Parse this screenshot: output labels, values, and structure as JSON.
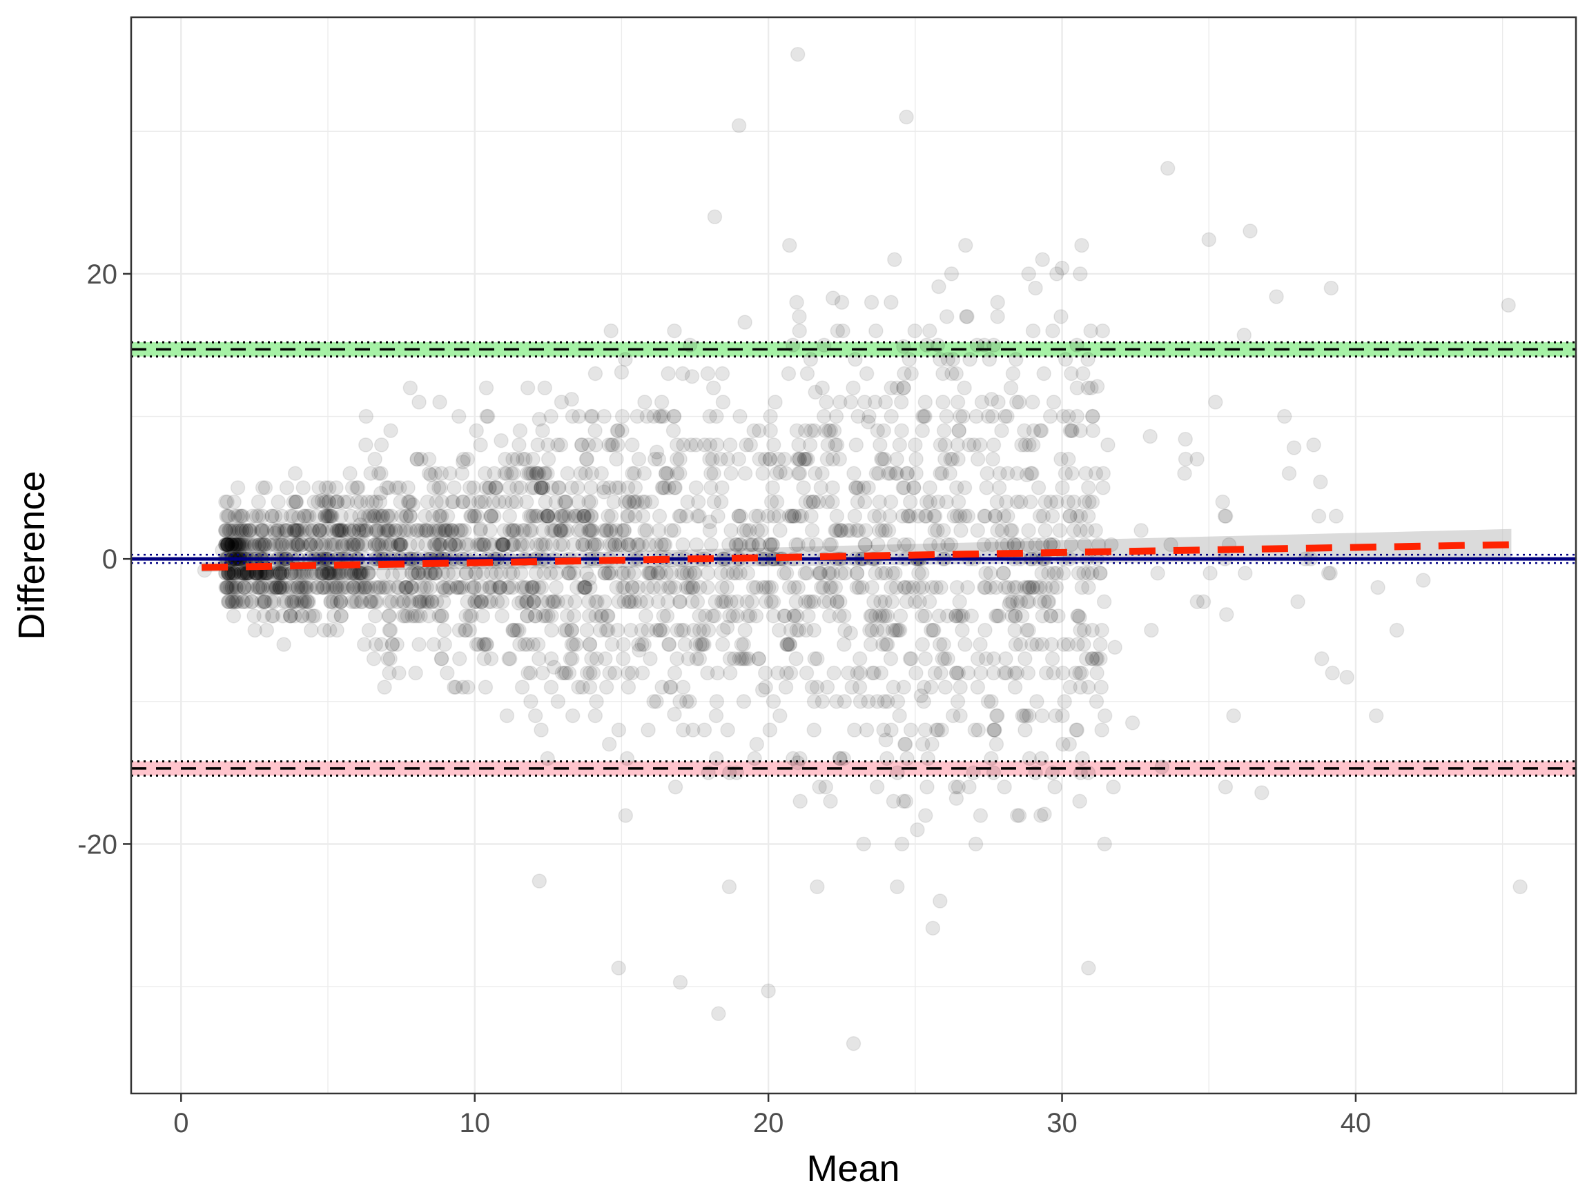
{
  "chart_data": {
    "type": "scatter",
    "subtype": "bland-altman",
    "title": "",
    "xlabel": "Mean",
    "ylabel": "Difference",
    "xlim": [
      -1.7,
      47.5
    ],
    "ylim": [
      -37.5,
      38.0
    ],
    "x_ticks": [
      0,
      10,
      20,
      30,
      40
    ],
    "y_ticks": [
      -20,
      0,
      20
    ],
    "x_tick_labels": [
      "0",
      "10",
      "20",
      "30",
      "40"
    ],
    "y_tick_labels": [
      "-20",
      "0",
      "20"
    ],
    "grid": true,
    "point_color": "#000000",
    "point_opacity": 0.1,
    "points_approx_count": 2500,
    "reference_lines": [
      {
        "name": "upper-limit-of-agreement",
        "y": 14.7,
        "ci": [
          14.2,
          15.2
        ],
        "band_color": "#90ee90",
        "line_color": "#000000"
      },
      {
        "name": "mean-difference",
        "y": 0.0,
        "line_color": "#000080"
      },
      {
        "name": "lower-limit-of-agreement",
        "y": -14.7,
        "ci": [
          -15.2,
          -14.2
        ],
        "band_color": "#ffb6c1",
        "line_color": "#000000"
      }
    ],
    "regression_line": {
      "color": "#ff2200",
      "points": [
        [
          0.7,
          -0.6
        ],
        [
          45.3,
          1.0
        ]
      ],
      "se_band_upper": [
        [
          0.7,
          -0.2
        ],
        [
          45.3,
          2.1
        ]
      ],
      "se_band_lower": [
        [
          0.7,
          -0.9
        ],
        [
          45.3,
          0.0
        ]
      ],
      "se_band_color": "#bebebe"
    },
    "scatter_points": [
      [
        0.8,
        -0.8
      ],
      [
        1.4,
        0.6
      ],
      [
        2.0,
        0.3
      ],
      [
        2.5,
        0.9
      ],
      [
        3.2,
        1.8
      ],
      [
        4.0,
        2.9
      ],
      [
        4.8,
        4.1
      ],
      [
        5.5,
        0.9
      ],
      [
        6.1,
        2.4
      ],
      [
        6.8,
        4.6
      ],
      [
        7.2,
        -1.1
      ],
      [
        7.9,
        3.8
      ],
      [
        8.5,
        5.9
      ],
      [
        9.0,
        -2.2
      ],
      [
        9.6,
        6.8
      ],
      [
        10.2,
        2.1
      ],
      [
        10.9,
        8.3
      ],
      [
        11.5,
        -3.1
      ],
      [
        12.2,
        9.8
      ],
      [
        12.7,
        -7.6
      ],
      [
        13.3,
        11.2
      ],
      [
        13.9,
        -1.4
      ],
      [
        14.4,
        4.7
      ],
      [
        15.0,
        13.1
      ],
      [
        15.6,
        -6.4
      ],
      [
        16.2,
        7.5
      ],
      [
        16.8,
        -10.9
      ],
      [
        17.4,
        12.8
      ],
      [
        18.0,
        2.6
      ],
      [
        18.6,
        -4.8
      ],
      [
        19.2,
        16.6
      ],
      [
        19.8,
        -9.2
      ],
      [
        20.4,
        6.1
      ],
      [
        21.0,
        -14.3
      ],
      [
        21.6,
        11.7
      ],
      [
        22.2,
        18.3
      ],
      [
        22.8,
        -5.2
      ],
      [
        23.4,
        9.6
      ],
      [
        24.0,
        -12.7
      ],
      [
        24.6,
        14.9
      ],
      [
        25.2,
        -9.6
      ],
      [
        25.8,
        19.1
      ],
      [
        26.4,
        -16.8
      ],
      [
        27.0,
        8.0
      ],
      [
        27.6,
        11.2
      ],
      [
        28.2,
        -3.2
      ],
      [
        28.8,
        5.9
      ],
      [
        29.4,
        -17.9
      ],
      [
        30.0,
        20.4
      ],
      [
        30.6,
        -4.1
      ],
      [
        31.2,
        12.1
      ],
      [
        31.8,
        -6.2
      ],
      [
        32.4,
        -11.5
      ],
      [
        33.0,
        8.6
      ],
      [
        33.6,
        27.4
      ],
      [
        34.2,
        8.4
      ],
      [
        35.0,
        22.4
      ],
      [
        35.6,
        -3.9
      ],
      [
        36.2,
        15.7
      ],
      [
        36.8,
        -16.4
      ],
      [
        37.3,
        18.4
      ],
      [
        37.9,
        7.8
      ],
      [
        38.8,
        5.4
      ],
      [
        39.7,
        -8.3
      ],
      [
        41.4,
        -5.0
      ],
      [
        42.3,
        -1.5
      ],
      [
        45.2,
        17.8
      ],
      [
        45.6,
        -23.0
      ],
      [
        20.0,
        -30.3
      ],
      [
        22.9,
        -34.0
      ],
      [
        18.3,
        -31.9
      ],
      [
        21.0,
        35.4
      ],
      [
        19.0,
        30.4
      ],
      [
        24.7,
        31.0
      ],
      [
        30.9,
        -28.7
      ],
      [
        14.9,
        -28.7
      ],
      [
        17.0,
        -29.7
      ],
      [
        25.6,
        -25.9
      ],
      [
        12.2,
        -22.6
      ],
      [
        33.4,
        -14.6
      ]
    ]
  }
}
